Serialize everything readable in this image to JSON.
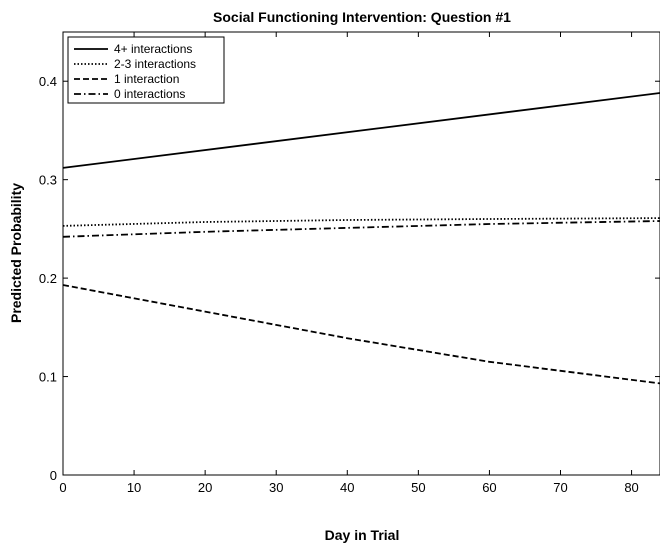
{
  "chart_data": {
    "type": "line",
    "title": "Social Functioning Intervention: Question #1",
    "xlabel": "Day in Trial",
    "ylabel": "Predicted Probability",
    "xlim": [
      0,
      84
    ],
    "ylim": [
      0,
      0.45
    ],
    "xticks": [
      0,
      10,
      20,
      30,
      40,
      50,
      60,
      70,
      80
    ],
    "yticks": [
      0,
      0.1,
      0.2,
      0.3,
      0.4
    ],
    "xtick_labels": [
      "0",
      "10",
      "20",
      "30",
      "40",
      "50",
      "60",
      "70",
      "80"
    ],
    "ytick_labels": [
      "0",
      "0.1",
      "0.2",
      "0.3",
      "0.4"
    ],
    "grid": false,
    "legend_position": "top-left",
    "series": [
      {
        "name": "4+ interactions",
        "dash": "solid",
        "x": [
          0,
          84
        ],
        "y": [
          0.312,
          0.388
        ]
      },
      {
        "name": "2-3 interactions",
        "dash": "dotted",
        "x": [
          0,
          20,
          40,
          60,
          84
        ],
        "y": [
          0.253,
          0.257,
          0.259,
          0.26,
          0.261
        ]
      },
      {
        "name": "1 interaction",
        "dash": "dashed",
        "x": [
          0,
          20,
          40,
          60,
          84
        ],
        "y": [
          0.193,
          0.166,
          0.139,
          0.115,
          0.093
        ]
      },
      {
        "name": "0 interactions",
        "dash": "dashdot",
        "x": [
          0,
          20,
          40,
          60,
          84
        ],
        "y": [
          0.242,
          0.247,
          0.251,
          0.255,
          0.258
        ]
      }
    ]
  }
}
